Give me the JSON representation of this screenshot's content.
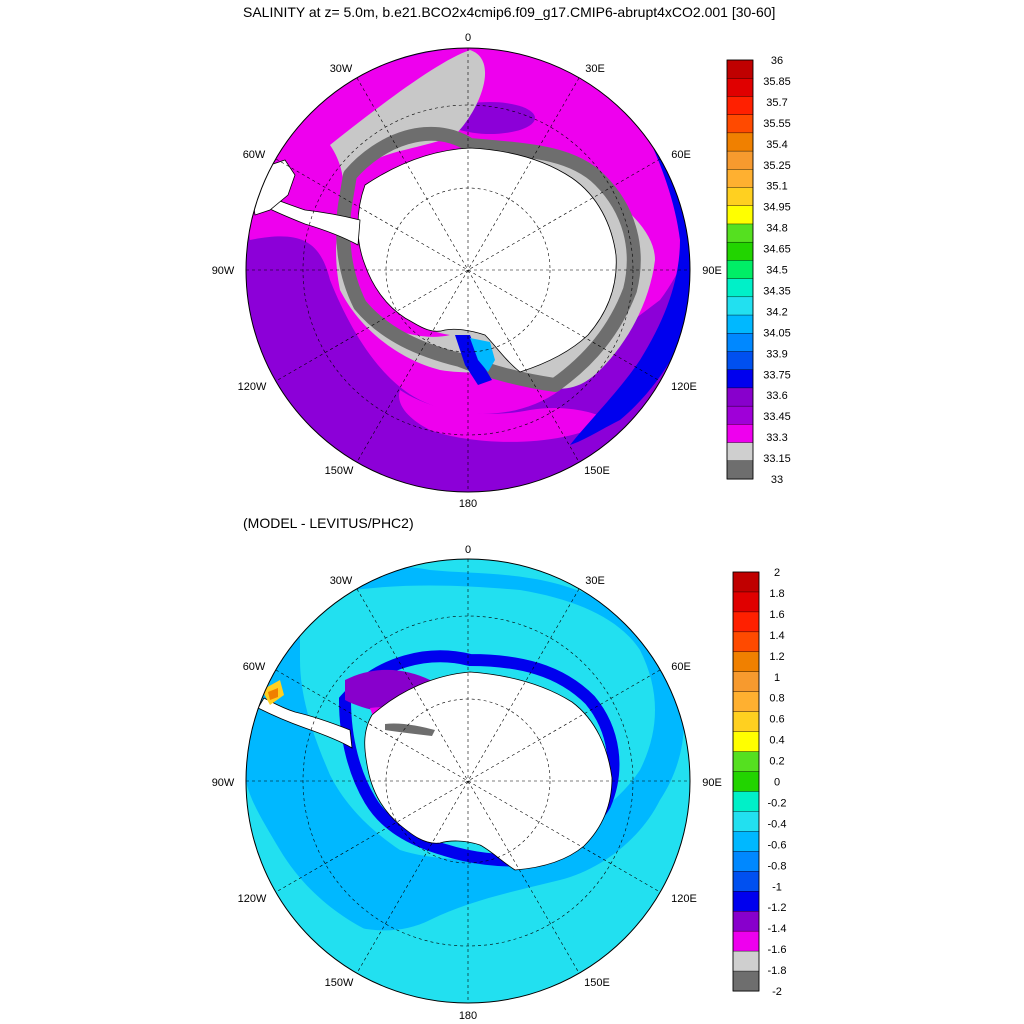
{
  "page_title": "SALINITY at z=   5.0m, b.e21.BCO2x4cmip6.f09_g17.CMIP6-abrupt4xCO2.001 [30-60]",
  "panels": [
    {
      "id": "top",
      "title": "SALINITY at z=   5.0m, b.e21.BCO2x4cmip6.f09_g17.CMIP6-abrupt4xCO2.001 [30-60]",
      "projection": "south-polar-stereographic",
      "longitude_labels": [
        "0",
        "30E",
        "60E",
        "90E",
        "120E",
        "150E",
        "180",
        "150W",
        "120W",
        "90W",
        "60W",
        "30W"
      ],
      "colorbar": {
        "labels": [
          "36",
          "35.85",
          "35.7",
          "35.55",
          "35.4",
          "35.25",
          "35.1",
          "34.95",
          "34.8",
          "34.65",
          "34.5",
          "34.35",
          "34.2",
          "34.05",
          "33.9",
          "33.75",
          "33.6",
          "33.45",
          "33.3",
          "33.15",
          "33"
        ],
        "colors": [
          "#c00000",
          "#e00000",
          "#ff2000",
          "#ff4a00",
          "#f08000",
          "#f79a2e",
          "#ffb030",
          "#ffd020",
          "#ffff00",
          "#55e020",
          "#22d400",
          "#00ee66",
          "#00f0c8",
          "#22e0f0",
          "#00b8ff",
          "#0088ff",
          "#0050f0",
          "#0000ee",
          "#8800cc",
          "#9f00d8",
          "#ee00ee",
          "#cfcfcf",
          "#6e6e6e"
        ]
      },
      "field_colors": {
        "ocean_main": "#8c00d8",
        "ocean_light": "#ee00ee",
        "low_band": "#c8c8c8",
        "lowest_band": "#6e6e6e",
        "high": "#0000ee",
        "higher": "#0060ff",
        "land": "#ffffff"
      }
    },
    {
      "id": "bottom",
      "title": "(MODEL - LEVITUS/PHC2)",
      "projection": "south-polar-stereographic",
      "longitude_labels": [
        "0",
        "30E",
        "60E",
        "90E",
        "120E",
        "150E",
        "180",
        "150W",
        "120W",
        "90W",
        "60W",
        "30W"
      ],
      "colorbar": {
        "labels": [
          "2",
          "1.8",
          "1.6",
          "1.4",
          "1.2",
          "1",
          "0.8",
          "0.6",
          "0.4",
          "0.2",
          "0",
          "-0.2",
          "-0.4",
          "-0.6",
          "-0.8",
          "-1",
          "-1.2",
          "-1.4",
          "-1.6",
          "-1.8",
          "-2"
        ],
        "colors": [
          "#c00000",
          "#e00000",
          "#ff2000",
          "#ff4a00",
          "#f08000",
          "#f79a2e",
          "#ffb030",
          "#ffd020",
          "#ffff00",
          "#55e020",
          "#22d400",
          "#00f0c8",
          "#22e0f0",
          "#00b8ff",
          "#0088ff",
          "#0050f0",
          "#0000ee",
          "#8800cc",
          "#ee00ee",
          "#cfcfcf",
          "#6e6e6e"
        ]
      },
      "field_colors": {
        "ocean_main": "#22e0f0",
        "ocean_mid": "#00b8ff",
        "low": "#0000ee",
        "lower": "#8800cc",
        "lowest": "#ee00ee",
        "gray": "#6e6e6e",
        "positive": "#ffd020",
        "land": "#ffffff"
      }
    }
  ]
}
